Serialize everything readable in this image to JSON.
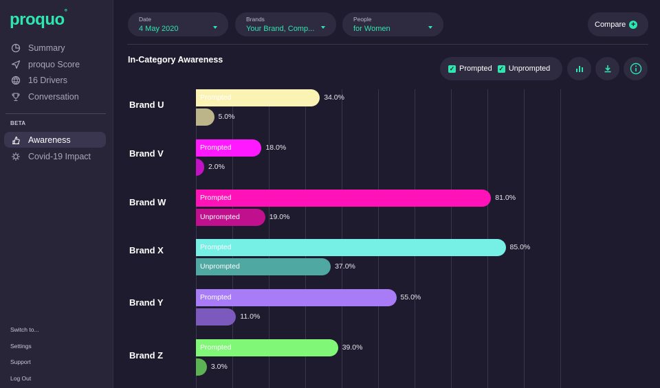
{
  "app": {
    "logo": "proquo",
    "logo_mark": "°"
  },
  "sidebar": {
    "items": [
      {
        "label": "Summary",
        "icon": "pie-icon"
      },
      {
        "label": "proquo Score",
        "icon": "send-icon"
      },
      {
        "label": "16 Drivers",
        "icon": "globe-icon"
      },
      {
        "label": "Conversation",
        "icon": "trophy-icon"
      }
    ],
    "beta_label": "BETA",
    "beta_items": [
      {
        "label": "Awareness",
        "icon": "hand-icon",
        "active": true
      },
      {
        "label": "Covid-19 Impact",
        "icon": "virus-icon"
      }
    ],
    "footer": [
      "Switch to...",
      "Settings",
      "Support",
      "Log Out"
    ]
  },
  "filters": {
    "date": {
      "label": "Date",
      "value": "4 May 2020"
    },
    "brands": {
      "label": "Brands",
      "value": "Your Brand, Comp..."
    },
    "people": {
      "label": "People",
      "value": "for Women"
    },
    "compare_label": "Compare"
  },
  "section": {
    "title": "In-Category Awareness",
    "legend": {
      "prompted": "Prompted",
      "unprompted": "Unprompted"
    }
  },
  "colors": {
    "accent": "#2ee6b0",
    "background": "#1f1b2e",
    "sidebar": "#282538"
  },
  "chart_data": {
    "type": "bar",
    "orientation": "horizontal",
    "title": "In-Category Awareness",
    "categories": [
      "Brand U",
      "Brand V",
      "Brand W",
      "Brand X",
      "Brand Y",
      "Brand Z"
    ],
    "series": [
      {
        "name": "Prompted",
        "values": [
          34.0,
          18.0,
          81.0,
          85.0,
          55.0,
          39.0
        ],
        "colors": [
          "#fbf3b4",
          "#ff19ff",
          "#ff13b9",
          "#76efe5",
          "#a97cf7",
          "#80f776"
        ]
      },
      {
        "name": "Unprompted",
        "values": [
          5.0,
          2.0,
          19.0,
          37.0,
          11.0,
          3.0
        ],
        "colors": [
          "#bcb589",
          "#c113c4",
          "#c0108e",
          "#4fa8a2",
          "#7b59bd",
          "#5cb354"
        ]
      }
    ],
    "value_labels": {
      "Prompted": [
        "34.0%",
        "18.0%",
        "81.0%",
        "85.0%",
        "55.0%",
        "39.0%"
      ],
      "Unprompted": [
        "5.0%",
        "2.0%",
        "19.0%",
        "37.0%",
        "11.0%",
        "3.0%"
      ]
    },
    "inside_labels": {
      "Prompted": [
        "Prompted",
        "Prompted",
        "Prompted",
        "Prompted",
        "Prompted",
        "Prompted"
      ],
      "Unprompted": [
        "",
        "",
        "Unprompted",
        "Unprompted",
        "",
        ""
      ]
    },
    "xlim": [
      0,
      100
    ],
    "grid": true
  }
}
